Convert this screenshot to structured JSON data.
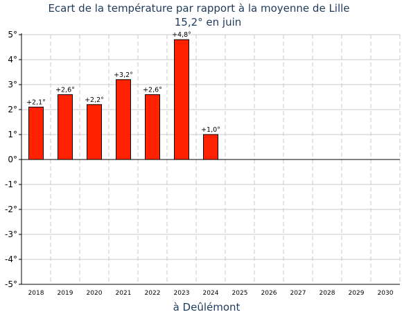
{
  "chart_data": {
    "type": "bar",
    "title": "Ecart de la température par rapport à la moyenne de Lille",
    "subtitle": "15,2° en juin",
    "xlabel": "à Deûlémont",
    "ylabel": "",
    "categories": [
      "2018",
      "2019",
      "2020",
      "2021",
      "2022",
      "2023",
      "2024",
      "2025",
      "2026",
      "2027",
      "2028",
      "2029",
      "2030"
    ],
    "values": [
      2.1,
      2.6,
      2.2,
      3.2,
      2.6,
      4.8,
      1.0,
      null,
      null,
      null,
      null,
      null,
      null
    ],
    "data_labels": [
      "+2,1°",
      "+2,6°",
      "+2,2°",
      "+3,2°",
      "+2,6°",
      "+4,8°",
      "+1,0°",
      "",
      "",
      "",
      "",
      "",
      ""
    ],
    "ylim": [
      -5,
      5
    ],
    "yticks": [
      5,
      4,
      3,
      2,
      1,
      0,
      -1,
      -2,
      -3,
      -4,
      -5
    ],
    "ytick_labels": [
      "5°",
      "4°",
      "3°",
      "2°",
      "1°",
      "0°",
      "-1°",
      "-2°",
      "-3°",
      "-4°",
      "-5°"
    ],
    "grid": true,
    "colors": {
      "bar": "#ff2200",
      "bar_edge": "#000000",
      "grid": "#c8c8c8",
      "title": "#1f3b5c"
    }
  }
}
